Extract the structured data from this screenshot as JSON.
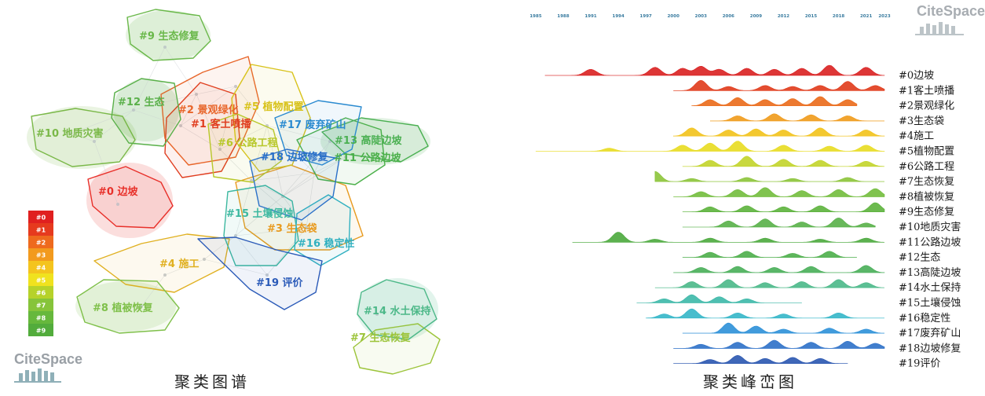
{
  "left_panel": {
    "caption": "聚类图谱",
    "watermark": "CiteSpace",
    "clusters": [
      {
        "id": "#0",
        "name": "边坡",
        "label": "#0 边坡",
        "color": "#e8302a"
      },
      {
        "id": "#1",
        "name": "客土喷播",
        "label": "#1 客土喷播",
        "color": "#e03d1f"
      },
      {
        "id": "#2",
        "name": "景观绿化",
        "label": "#2 景观绿化",
        "color": "#e8652a"
      },
      {
        "id": "#3",
        "name": "生态袋",
        "label": "#3 生态袋",
        "color": "#e89a1e"
      },
      {
        "id": "#4",
        "name": "施工",
        "label": "#4 施工",
        "color": "#e0b020"
      },
      {
        "id": "#5",
        "name": "植物配置",
        "label": "#5 植物配置",
        "color": "#d8c21a"
      },
      {
        "id": "#6",
        "name": "公路工程",
        "label": "#6 公路工程",
        "color": "#b8c82a"
      },
      {
        "id": "#7",
        "name": "生态恢复",
        "label": "#7 生态恢复",
        "color": "#9cc43a"
      },
      {
        "id": "#8",
        "name": "植被恢复",
        "label": "#8 植被恢复",
        "color": "#7fc04a"
      },
      {
        "id": "#9",
        "name": "生态修复",
        "label": "#9 生态修复",
        "color": "#6ab84a"
      },
      {
        "id": "#10",
        "name": "地质灾害",
        "label": "#10 地质灾害",
        "color": "#7ab848"
      },
      {
        "id": "#11",
        "name": "公路边坡",
        "label": "#11 公路边坡",
        "color": "#4bb04a"
      },
      {
        "id": "#12",
        "name": "生态",
        "label": "#12 生态",
        "color": "#5ab04a"
      },
      {
        "id": "#13",
        "name": "高陡边坡",
        "label": "#13 高陡边坡",
        "color": "#4bb052"
      },
      {
        "id": "#14",
        "name": "水土保持",
        "label": "#14 水土保持",
        "color": "#4cb888"
      },
      {
        "id": "#15",
        "name": "土壤侵蚀",
        "label": "#15 土壤侵蚀",
        "color": "#3cb8a0"
      },
      {
        "id": "#16",
        "name": "稳定性",
        "label": "#16 稳定性",
        "color": "#30b0c0"
      },
      {
        "id": "#17",
        "name": "废弃矿山",
        "label": "#17 废弃矿山",
        "color": "#2a8ad0"
      },
      {
        "id": "#18",
        "name": "边坡修复",
        "label": "#18 边坡修复",
        "color": "#2a70c8"
      },
      {
        "id": "#19",
        "name": "评价",
        "label": "#19 评价",
        "color": "#2a5ab8"
      }
    ],
    "legend": [
      {
        "label": "#0",
        "color": "#e02020"
      },
      {
        "label": "#1",
        "color": "#e63a1e"
      },
      {
        "label": "#2",
        "color": "#ee6a1e"
      },
      {
        "label": "#3",
        "color": "#f29a1e"
      },
      {
        "label": "#4",
        "color": "#f4c41e"
      },
      {
        "label": "#5",
        "color": "#f0e21e"
      },
      {
        "label": "#6",
        "color": "#b6d22a"
      },
      {
        "label": "#7",
        "color": "#86c43a"
      },
      {
        "label": "#8",
        "color": "#66b83c"
      },
      {
        "label": "#9",
        "color": "#52ac3c"
      }
    ]
  },
  "right_panel": {
    "caption": "聚类峰峦图",
    "watermark": "CiteSpace",
    "years": [
      "1985",
      "1988",
      "1991",
      "1994",
      "1997",
      "2000",
      "2003",
      "2006",
      "2009",
      "2012",
      "2015",
      "2018",
      "2021",
      "2023"
    ],
    "rows": [
      {
        "label": "#0边坡",
        "color": "#d92020",
        "start": 1986,
        "end": 2023,
        "peaks": [
          [
            1991,
            0.6
          ],
          [
            1998,
            0.8
          ],
          [
            2001,
            0.7
          ],
          [
            2003,
            0.9
          ],
          [
            2005,
            0.6
          ],
          [
            2008,
            0.7
          ],
          [
            2011,
            0.6
          ],
          [
            2014,
            0.7
          ],
          [
            2017,
            1.0
          ],
          [
            2021,
            0.8
          ]
        ]
      },
      {
        "label": "#1客土喷播",
        "color": "#e03a1a",
        "start": 2000,
        "end": 2023,
        "peaks": [
          [
            2003,
            1.0
          ],
          [
            2006,
            0.4
          ],
          [
            2010,
            0.5
          ],
          [
            2013,
            0.4
          ],
          [
            2016,
            0.5
          ],
          [
            2019,
            0.9
          ],
          [
            2022,
            0.5
          ]
        ]
      },
      {
        "label": "#2景观绿化",
        "color": "#ea6a1a",
        "start": 2002,
        "end": 2020,
        "peaks": [
          [
            2004,
            0.6
          ],
          [
            2007,
            0.8
          ],
          [
            2010,
            0.6
          ],
          [
            2013,
            0.7
          ],
          [
            2016,
            0.9
          ],
          [
            2019,
            0.6
          ]
        ]
      },
      {
        "label": "#3生态袋",
        "color": "#f09a1a",
        "start": 2004,
        "end": 2023,
        "peaks": [
          [
            2007,
            0.5
          ],
          [
            2011,
            0.7
          ],
          [
            2015,
            0.6
          ],
          [
            2019,
            0.5
          ]
        ]
      },
      {
        "label": "#4施工",
        "color": "#f2c21a",
        "start": 2000,
        "end": 2023,
        "peaks": [
          [
            2002,
            0.8
          ],
          [
            2006,
            0.6
          ],
          [
            2009,
            0.7
          ],
          [
            2012,
            0.6
          ],
          [
            2016,
            0.8
          ],
          [
            2021,
            0.6
          ]
        ]
      },
      {
        "label": "#5植物配置",
        "color": "#e8dc20",
        "start": 1985,
        "end": 2023,
        "peaks": [
          [
            1993,
            0.3
          ],
          [
            2001,
            0.6
          ],
          [
            2004,
            0.8
          ],
          [
            2007,
            1.0
          ],
          [
            2012,
            0.6
          ],
          [
            2017,
            0.5
          ],
          [
            2021,
            0.6
          ]
        ]
      },
      {
        "label": "#6公路工程",
        "color": "#c2d42a",
        "start": 2001,
        "end": 2023,
        "peaks": [
          [
            2004,
            0.6
          ],
          [
            2008,
            1.0
          ],
          [
            2012,
            0.7
          ],
          [
            2016,
            0.6
          ],
          [
            2021,
            0.5
          ]
        ]
      },
      {
        "label": "#7生态恢复",
        "color": "#8cc43a",
        "start": 1998,
        "end": 2023,
        "peaks": [
          [
            1998,
            1.0
          ],
          [
            2002,
            0.3
          ],
          [
            2008,
            0.4
          ],
          [
            2013,
            0.3
          ],
          [
            2019,
            0.4
          ]
        ]
      },
      {
        "label": "#8植被恢复",
        "color": "#72bc3c",
        "start": 2000,
        "end": 2023,
        "peaks": [
          [
            2003,
            0.5
          ],
          [
            2007,
            0.7
          ],
          [
            2010,
            0.9
          ],
          [
            2014,
            0.6
          ],
          [
            2018,
            0.7
          ],
          [
            2022,
            0.8
          ]
        ]
      },
      {
        "label": "#9生态修复",
        "color": "#5cb23c",
        "start": 2001,
        "end": 2023,
        "peaks": [
          [
            2004,
            0.5
          ],
          [
            2008,
            0.6
          ],
          [
            2012,
            0.5
          ],
          [
            2016,
            0.6
          ],
          [
            2022,
            0.9
          ]
        ]
      },
      {
        "label": "#10地质灾害",
        "color": "#58b048",
        "start": 2001,
        "end": 2022,
        "peaks": [
          [
            2006,
            0.6
          ],
          [
            2010,
            0.8
          ],
          [
            2014,
            0.5
          ],
          [
            2018,
            0.9
          ],
          [
            2021,
            0.4
          ]
        ]
      },
      {
        "label": "#11公路边坡",
        "color": "#4aa83c",
        "start": 1989,
        "end": 2023,
        "peaks": [
          [
            1994,
            1.0
          ],
          [
            1998,
            0.3
          ],
          [
            2004,
            0.4
          ],
          [
            2010,
            0.4
          ],
          [
            2016,
            0.3
          ],
          [
            2021,
            0.4
          ]
        ]
      },
      {
        "label": "#12生态",
        "color": "#4cae4a",
        "start": 2001,
        "end": 2020,
        "peaks": [
          [
            2004,
            0.5
          ],
          [
            2008,
            0.6
          ],
          [
            2013,
            0.4
          ],
          [
            2017,
            0.6
          ]
        ]
      },
      {
        "label": "#13高陡边坡",
        "color": "#48ae58",
        "start": 2000,
        "end": 2023,
        "peaks": [
          [
            2003,
            0.5
          ],
          [
            2007,
            0.6
          ],
          [
            2011,
            0.5
          ],
          [
            2015,
            0.6
          ],
          [
            2021,
            0.7
          ]
        ]
      },
      {
        "label": "#14水土保持",
        "color": "#4ab888",
        "start": 1998,
        "end": 2023,
        "peaks": [
          [
            2002,
            0.6
          ],
          [
            2006,
            0.8
          ],
          [
            2010,
            0.5
          ],
          [
            2014,
            0.6
          ],
          [
            2018,
            0.8
          ],
          [
            2021,
            0.5
          ]
        ]
      },
      {
        "label": "#15土壤侵蚀",
        "color": "#3cb8a8",
        "start": 1996,
        "end": 2014,
        "peaks": [
          [
            1999,
            0.4
          ],
          [
            2002,
            0.8
          ],
          [
            2005,
            0.6
          ],
          [
            2008,
            0.4
          ]
        ]
      },
      {
        "label": "#16稳定性",
        "color": "#34b6c8",
        "start": 1997,
        "end": 2023,
        "peaks": [
          [
            1999,
            0.4
          ],
          [
            2002,
            0.9
          ],
          [
            2007,
            0.5
          ],
          [
            2012,
            0.4
          ],
          [
            2018,
            0.5
          ]
        ]
      },
      {
        "label": "#17废弃矿山",
        "color": "#2c90d8",
        "start": 2001,
        "end": 2023,
        "peaks": [
          [
            2006,
            1.0
          ],
          [
            2009,
            0.7
          ],
          [
            2012,
            0.4
          ],
          [
            2017,
            0.5
          ],
          [
            2021,
            0.4
          ]
        ]
      },
      {
        "label": "#18边坡修复",
        "color": "#2c70c8",
        "start": 2000,
        "end": 2023,
        "peaks": [
          [
            2003,
            0.4
          ],
          [
            2007,
            0.6
          ],
          [
            2011,
            0.8
          ],
          [
            2015,
            0.6
          ],
          [
            2019,
            0.7
          ],
          [
            2022,
            0.5
          ]
        ]
      },
      {
        "label": "#19评价",
        "color": "#2a56b0",
        "start": 2000,
        "end": 2019,
        "peaks": [
          [
            2004,
            0.4
          ],
          [
            2007,
            0.8
          ],
          [
            2010,
            0.5
          ],
          [
            2013,
            0.6
          ],
          [
            2016,
            0.5
          ]
        ]
      }
    ]
  }
}
